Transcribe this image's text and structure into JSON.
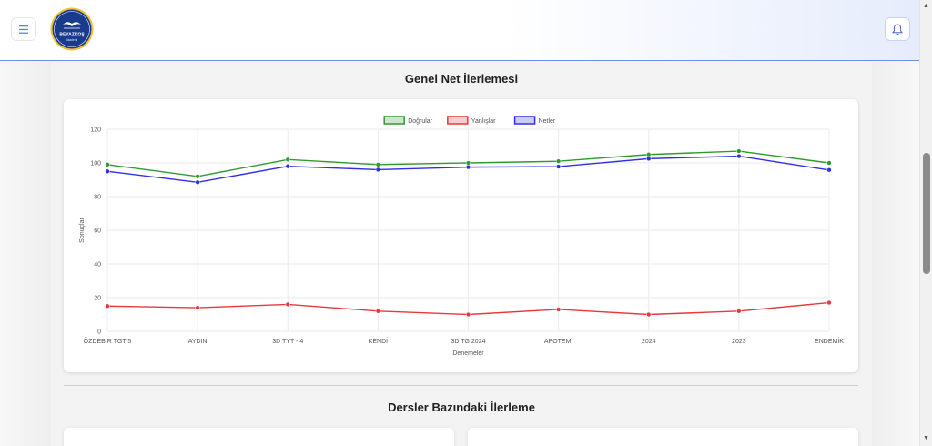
{
  "header": {
    "logo_text": "BEYAZKOŞ",
    "logo_subtext": "Akademi"
  },
  "sections": {
    "progress_title": "Genel Net İlerlemesi",
    "courses_title": "Dersler Bazındaki İlerleme"
  },
  "chart_data": {
    "type": "line",
    "categories": [
      "ÖZDEBİR TGT 5",
      "AYDIN",
      "3D TYT - 4",
      "KENDİ",
      "3D TG 2024",
      "APOTEMİ",
      "2024",
      "2023",
      "ENDEMİK"
    ],
    "series": [
      {
        "name": "Doğrular",
        "color": "#2e9b2e",
        "values": [
          99,
          92,
          102,
          99,
          100,
          101,
          105,
          107,
          100
        ]
      },
      {
        "name": "Yanlışlar",
        "color": "#e8383d",
        "values": [
          15,
          14,
          16,
          12,
          10,
          13,
          10,
          12,
          17
        ]
      },
      {
        "name": "Netler",
        "color": "#2f2fe8",
        "values": [
          95,
          88.5,
          98,
          96,
          97.5,
          97.8,
          102.5,
          104,
          95.8
        ]
      }
    ],
    "xlabel": "Denemeler",
    "ylabel": "Sonuçlar",
    "ylim": [
      0,
      120
    ],
    "yticks": [
      "0",
      "20",
      "40",
      "60",
      "80",
      "100",
      "120"
    ],
    "grid": true,
    "legend_position": "top-center"
  },
  "colors": {
    "accent": "#6f8fe6",
    "logo_blue": "#1a3a8c"
  },
  "icons": {
    "menu": "hamburger-icon",
    "notifications": "bell-icon"
  }
}
